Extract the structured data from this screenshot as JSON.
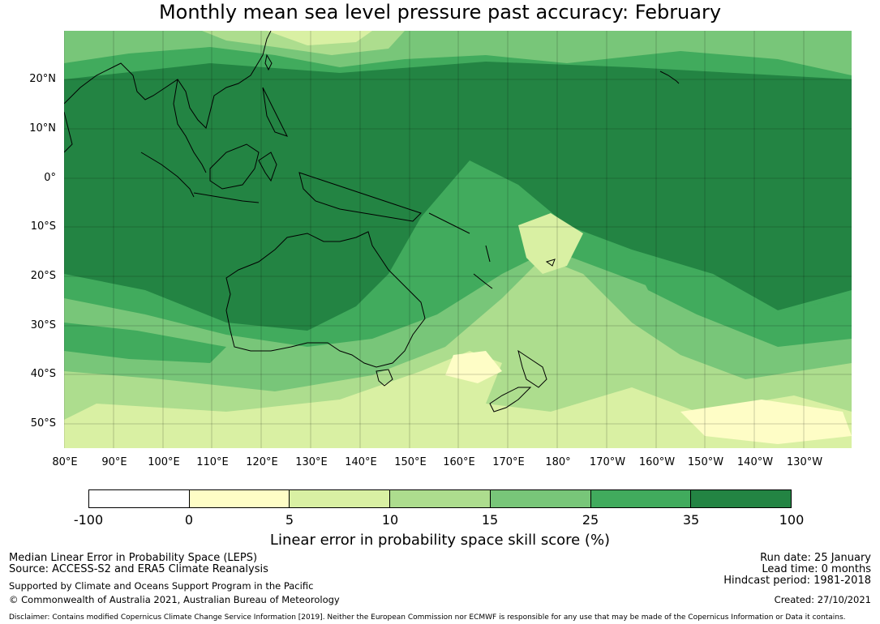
{
  "title": "Monthly mean sea level pressure past accuracy: February",
  "map": {
    "lat_labels": [
      "20°N",
      "10°N",
      "0°",
      "10°S",
      "20°S",
      "30°S",
      "40°S",
      "50°S"
    ],
    "lon_labels": [
      "80°E",
      "90°E",
      "100°E",
      "110°E",
      "120°E",
      "130°E",
      "140°E",
      "150°E",
      "160°E",
      "170°E",
      "180°",
      "170°W",
      "160°W",
      "150°W",
      "140°W",
      "130°W"
    ],
    "colors": {
      "lt0": "#ffffff",
      "0-5": "#fefdc6",
      "5-10": "#d9f0a3",
      "10-15": "#addd8e",
      "15-25": "#78c679",
      "25-35": "#41ab5d",
      "35-100": "#238443",
      "coast": "#000000"
    }
  },
  "colorbar": {
    "ticks": [
      "-100",
      "0",
      "5",
      "10",
      "15",
      "25",
      "35",
      "100"
    ],
    "colors": [
      "#ffffff",
      "#fefdc6",
      "#d9f0a3",
      "#addd8e",
      "#78c679",
      "#41ab5d",
      "#238443"
    ],
    "label": "Linear error in probability space skill score (%)"
  },
  "footer": {
    "line1": "Median Linear Error in Probability Space (LEPS)",
    "line2": "Source: ACCESS-S2 and ERA5 Climate Reanalysis",
    "line3": "Supported by Climate and Oceans Support Program in the Pacific",
    "line4": "© Commonwealth of Australia 2021, Australian Bureau of Meteorology",
    "run_date": "Run date: 25 January",
    "lead_time": "Lead time: 0 months",
    "hindcast": "Hindcast period: 1981-2018",
    "created": "Created: 27/10/2021",
    "disclaimer": "Disclaimer: Contains modified Copernicus Climate Change Service Information [2019]. Neither the European Commission nor ECMWF is responsible for any use that may be made of the Copernicus Information or Data it contains."
  }
}
